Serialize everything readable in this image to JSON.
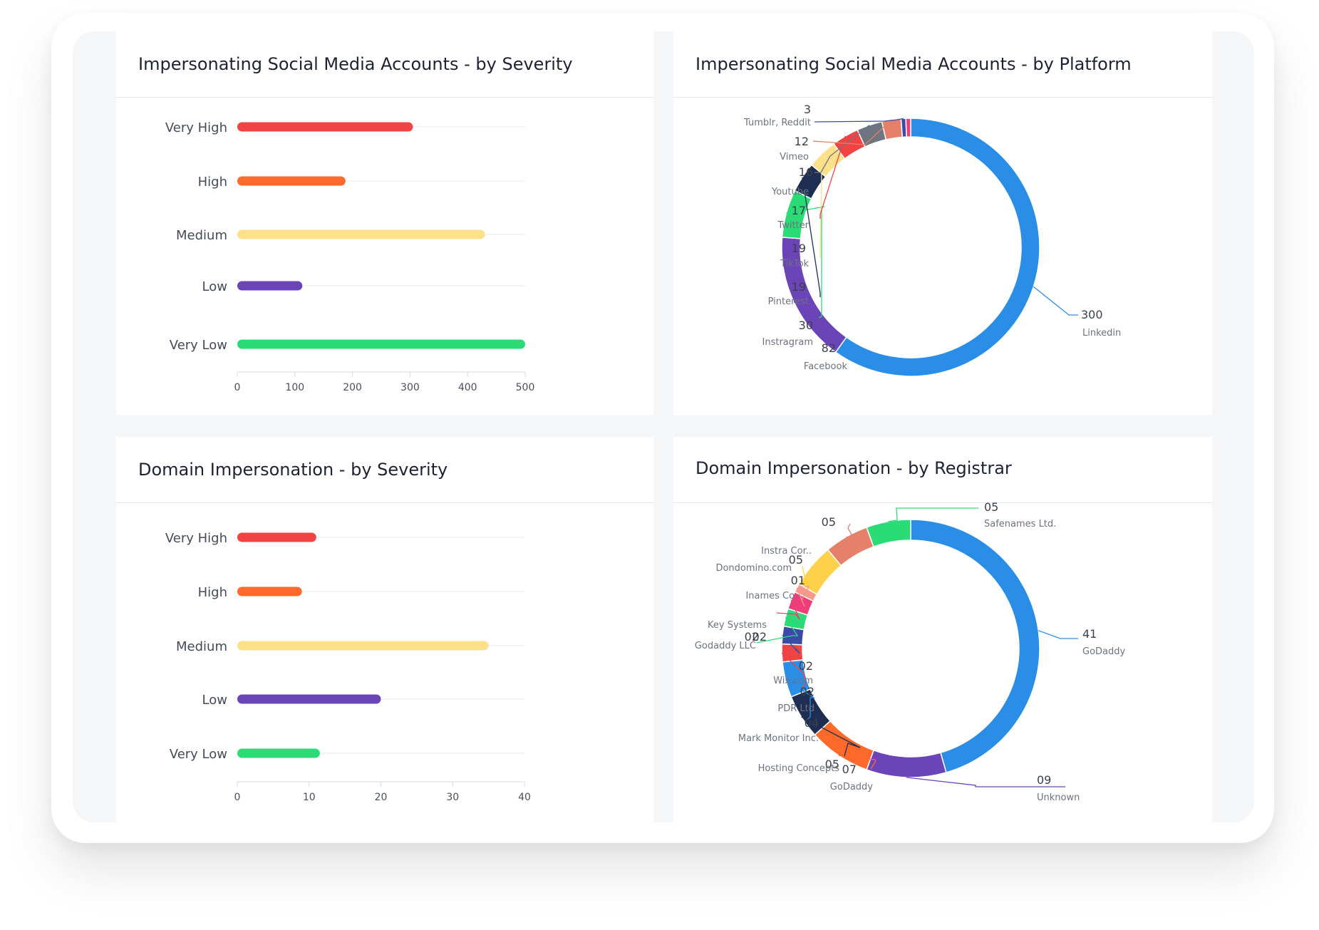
{
  "colors": {
    "very_high": "#f04444",
    "high": "#ff6a2a",
    "medium": "#fde08a",
    "low": "#6b44b8",
    "very_low": "#2bdc76",
    "linkedin": "#2a8de6",
    "godaddy_blue": "#2a8de6"
  },
  "chart_data": [
    {
      "type": "bar",
      "orientation": "horizontal",
      "title": "Impersonating Social Media Accounts - by Severity",
      "categories": [
        "Very High",
        "High",
        "Medium",
        "Low",
        "Very Low"
      ],
      "values": [
        305,
        188,
        430,
        113,
        500
      ],
      "colors": [
        "#f04444",
        "#ff6a2a",
        "#fde08a",
        "#6b44b8",
        "#2bdc76"
      ],
      "xlim": [
        0,
        500
      ],
      "xticks": [
        "0",
        "100",
        "200",
        "300",
        "400",
        "500"
      ],
      "grid": true
    },
    {
      "type": "pie",
      "donut": true,
      "title": "Impersonating Social Media Accounts - by Platform",
      "slices": [
        {
          "label": "Linkedin",
          "value": 300,
          "value_label": "300",
          "color": "#2a8de6"
        },
        {
          "label": "Facebook",
          "value": 82,
          "value_label": "82",
          "color": "#6b44b8"
        },
        {
          "label": "Instragram",
          "value": 30,
          "value_label": "30",
          "color": "#2bdc76"
        },
        {
          "label": "Pinterest",
          "value": 19,
          "value_label": "19",
          "color": "#1e2e52"
        },
        {
          "label": "TikTok",
          "value": 19,
          "value_label": "19",
          "color": "#fde08a"
        },
        {
          "label": "Twitter",
          "value": 17,
          "value_label": "17",
          "color": "#f04444"
        },
        {
          "label": "Youtube",
          "value": 16,
          "value_label": "16",
          "color": "#6e7480"
        },
        {
          "label": "Vimeo",
          "value": 12,
          "value_label": "12",
          "color": "#e5806a"
        },
        {
          "label": "Tumblr, Reddit",
          "value": 3,
          "value_label": "3",
          "color": "#3b4ba8"
        },
        {
          "label": "",
          "value": 3,
          "value_label": "",
          "color": "#ee3d78"
        }
      ]
    },
    {
      "type": "bar",
      "orientation": "horizontal",
      "title": "Domain Impersonation - by Severity",
      "categories": [
        "Very High",
        "High",
        "Medium",
        "Low",
        "Very Low"
      ],
      "values": [
        11,
        9,
        35,
        20,
        11.5
      ],
      "colors": [
        "#f04444",
        "#ff6a2a",
        "#fde08a",
        "#6b44b8",
        "#2bdc76"
      ],
      "xlim": [
        0,
        40
      ],
      "xticks": [
        "0",
        "10",
        "20",
        "30",
        "40"
      ],
      "grid": true
    },
    {
      "type": "pie",
      "donut": true,
      "title": "Domain Impersonation - by Registrar",
      "slices": [
        {
          "label": "GoDaddy",
          "value": 41,
          "value_label": "41",
          "color": "#2a8de6"
        },
        {
          "label": "Unknown",
          "value": 9,
          "value_label": "09",
          "color": "#6b44b8"
        },
        {
          "label": "GoDaddy",
          "value": 7,
          "value_label": "07",
          "color": "#ff6a2a"
        },
        {
          "label": "Hosting Concepts",
          "value": 5,
          "value_label": "05",
          "color": "#1e2e52"
        },
        {
          "label": "Mark Monitor Inc.",
          "value": 4,
          "value_label": "04",
          "color": "#2a8de6"
        },
        {
          "label": "PDR Ltd",
          "value": 2,
          "value_label": "02",
          "color": "#f04444"
        },
        {
          "label": "Wix.com",
          "value": 2,
          "value_label": "02",
          "color": "#3b4ba8"
        },
        {
          "label": "Godaddy LLC",
          "value": 2,
          "value_label": "02",
          "color": "#2bdc76"
        },
        {
          "label": "Key Systems",
          "value": 2,
          "value_label": "02",
          "color": "#ee3d78"
        },
        {
          "label": "Inames Co.",
          "value": 1,
          "value_label": "01",
          "color": "#f59a8a"
        },
        {
          "label": "Dondomino.com",
          "value": 5,
          "value_label": "05",
          "color": "#fdd24a"
        },
        {
          "label": "Instra Cor..",
          "value": 5,
          "value_label": "05",
          "color": "#e5806a"
        },
        {
          "label": "Safenames Ltd.",
          "value": 5,
          "value_label": "05",
          "color": "#2bdc76"
        }
      ]
    }
  ]
}
